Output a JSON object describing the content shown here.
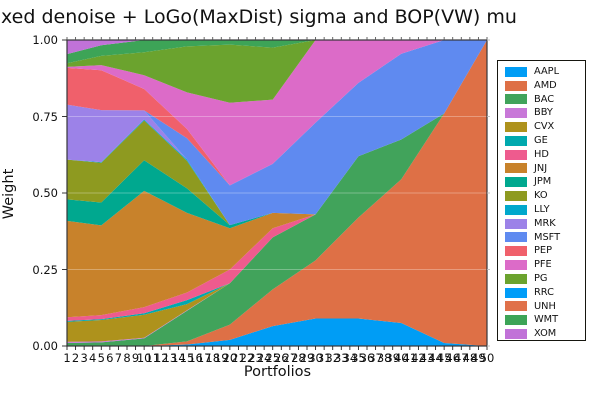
{
  "chart": {
    "title": "xed denoise + LoGo(MaxDist) sigma and BOP(VW) mu",
    "ylabel": "Weight",
    "xlabel": "Portfolios"
  },
  "chart_data": {
    "type": "area",
    "stacked": true,
    "title": "xed denoise + LoGo(MaxDist) sigma and BOP(VW) mu",
    "xlabel": "Portfolios",
    "ylabel": "Weight",
    "xlim": [
      1,
      50
    ],
    "ylim": [
      0,
      1
    ],
    "x_ticks": [
      1,
      2,
      3,
      4,
      5,
      6,
      7,
      8,
      9,
      10,
      11,
      12,
      13,
      14,
      15,
      16,
      17,
      18,
      19,
      20,
      21,
      22,
      23,
      24,
      25,
      26,
      27,
      28,
      29,
      30,
      31,
      32,
      33,
      34,
      35,
      36,
      37,
      38,
      39,
      40,
      41,
      42,
      43,
      44,
      45,
      46,
      47,
      48,
      49,
      50
    ],
    "y_ticks": [
      "0.00",
      "0.25",
      "0.50",
      "0.75",
      "1.00"
    ],
    "y_tick_values": [
      0,
      0.25,
      0.5,
      0.75,
      1.0
    ],
    "grid": true,
    "legend_position": "outer-right",
    "x_samples": [
      1,
      5,
      10,
      15,
      20,
      25,
      30,
      35,
      40,
      45,
      50
    ],
    "series": [
      {
        "name": "AAPL",
        "color": "#009DF5",
        "values": [
          0,
          0,
          0,
          0.005,
          0.02,
          0.065,
          0.09,
          0.09,
          0.075,
          0.01,
          0
        ]
      },
      {
        "name": "AMD",
        "color": "#DE7046",
        "values": [
          0,
          0,
          0,
          0.01,
          0.05,
          0.12,
          0.19,
          0.33,
          0.47,
          0.75,
          1.0
        ]
      },
      {
        "name": "BAC",
        "color": "#41A35B",
        "values": [
          0.01,
          0.012,
          0.025,
          0.1,
          0.135,
          0.17,
          0.15,
          0.2,
          0.13,
          0,
          0
        ]
      },
      {
        "name": "BBY",
        "color": "#C878D8",
        "values": [
          0.004,
          0.003,
          0.002,
          0.002,
          0,
          0,
          0,
          0,
          0,
          0,
          0
        ]
      },
      {
        "name": "CVX",
        "color": "#AE921C",
        "values": [
          0.065,
          0.07,
          0.075,
          0.02,
          0,
          0,
          0,
          0,
          0,
          0,
          0
        ]
      },
      {
        "name": "GE",
        "color": "#00A9AE",
        "values": [
          0.003,
          0.003,
          0.005,
          0.013,
          0,
          0,
          0,
          0,
          0,
          0,
          0
        ]
      },
      {
        "name": "HD",
        "color": "#EE5B8E",
        "values": [
          0.012,
          0.013,
          0.02,
          0.025,
          0.045,
          0.03,
          0,
          0,
          0,
          0,
          0
        ]
      },
      {
        "name": "JNJ",
        "color": "#C8822B",
        "values": [
          0.315,
          0.293,
          0.38,
          0.26,
          0.135,
          0.05,
          0,
          0,
          0,
          0,
          0
        ]
      },
      {
        "name": "JPM",
        "color": "#00A88F",
        "values": [
          0.07,
          0.075,
          0.1,
          0.08,
          0.01,
          0,
          0,
          0,
          0,
          0,
          0
        ]
      },
      {
        "name": "KO",
        "color": "#8E9A20",
        "values": [
          0.13,
          0.13,
          0.13,
          0.09,
          0,
          0,
          0,
          0,
          0,
          0,
          0
        ]
      },
      {
        "name": "LLY",
        "color": "#00A8CC",
        "values": [
          0,
          0.002,
          0.003,
          0.004,
          0,
          0,
          0,
          0,
          0,
          0,
          0
        ]
      },
      {
        "name": "MRK",
        "color": "#9C82E8",
        "values": [
          0.18,
          0.17,
          0.03,
          0,
          0,
          0,
          0,
          0,
          0,
          0,
          0
        ]
      },
      {
        "name": "MSFT",
        "color": "#5F8AF0",
        "values": [
          0,
          0,
          0,
          0.07,
          0.13,
          0.16,
          0.3,
          0.24,
          0.28,
          0.24,
          0
        ]
      },
      {
        "name": "PEP",
        "color": "#F0606B",
        "values": [
          0.12,
          0.13,
          0.07,
          0.03,
          0,
          0,
          0,
          0,
          0,
          0,
          0
        ]
      },
      {
        "name": "PFE",
        "color": "#DC6BC8",
        "values": [
          0.003,
          0.017,
          0.045,
          0.12,
          0.27,
          0.21,
          0.27,
          0.14,
          0.045,
          0,
          0
        ]
      },
      {
        "name": "PG",
        "color": "#6BA32E",
        "values": [
          0.012,
          0.03,
          0.075,
          0.15,
          0.19,
          0.17,
          0,
          0,
          0,
          0,
          0
        ]
      },
      {
        "name": "RRC",
        "color": "#009DF8",
        "values": [
          0,
          0,
          0,
          0,
          0,
          0,
          0,
          0,
          0,
          0,
          0
        ]
      },
      {
        "name": "UNH",
        "color": "#E0714A",
        "values": [
          0,
          0,
          0,
          0,
          0,
          0,
          0,
          0,
          0,
          0,
          0
        ]
      },
      {
        "name": "WMT",
        "color": "#3DA457",
        "values": [
          0.03,
          0.035,
          0.04,
          0.02,
          0.015,
          0.025,
          0,
          0,
          0,
          0,
          0
        ]
      },
      {
        "name": "XOM",
        "color": "#C172D8",
        "values": [
          0.046,
          0.017,
          0,
          0,
          0,
          0,
          0,
          0,
          0,
          0,
          0
        ]
      }
    ]
  },
  "legend": {
    "entries": [
      "AAPL",
      "AMD",
      "BAC",
      "BBY",
      "CVX",
      "GE",
      "HD",
      "JNJ",
      "JPM",
      "KO",
      "LLY",
      "MRK",
      "MSFT",
      "PEP",
      "PFE",
      "PG",
      "RRC",
      "UNH",
      "WMT",
      "XOM"
    ]
  },
  "style": {
    "frame_color": "#36363a",
    "grid_overlay_color": "rgba(255,255,255,0.30)",
    "background": "#ffffff"
  }
}
